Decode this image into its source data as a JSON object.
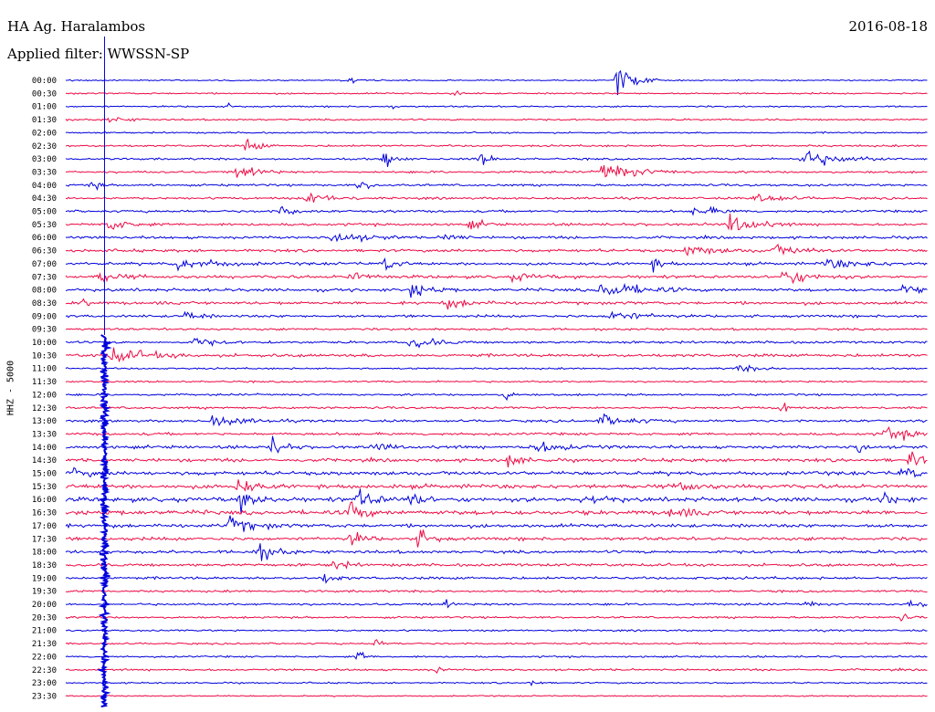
{
  "header": {
    "station": "HA Ag. Haralambos",
    "date": "2016-08-18",
    "filter": "Applied filter: WWSSN-SP"
  },
  "channel_label": "HHZ - 5000",
  "colors": {
    "trace_a": "#0000dd",
    "trace_b": "#ee0a44",
    "text": "#000000"
  },
  "chart_data": {
    "type": "line",
    "description_type": "helicorder",
    "row_labels": [
      "00:00",
      "00:30",
      "01:00",
      "01:30",
      "02:00",
      "02:30",
      "03:00",
      "03:30",
      "04:00",
      "04:30",
      "05:00",
      "05:30",
      "06:00",
      "06:30",
      "07:00",
      "07:30",
      "08:00",
      "08:30",
      "09:00",
      "09:30",
      "10:00",
      "10:30",
      "11:00",
      "11:30",
      "12:00",
      "12:30",
      "13:00",
      "13:30",
      "14:00",
      "14:30",
      "15:00",
      "15:30",
      "16:00",
      "16:30",
      "17:00",
      "17:30",
      "18:00",
      "18:30",
      "19:00",
      "19:30",
      "20:00",
      "20:30",
      "21:00",
      "21:30",
      "22:00",
      "22:30",
      "23:00",
      "23:30"
    ],
    "row_noise": [
      0.6,
      0.7,
      0.7,
      0.8,
      0.7,
      0.9,
      0.9,
      1.0,
      1.0,
      1.0,
      1.1,
      1.2,
      1.2,
      1.3,
      1.3,
      1.4,
      1.4,
      1.4,
      1.2,
      1.0,
      1.1,
      1.4,
      0.8,
      0.8,
      0.9,
      1.0,
      1.1,
      1.2,
      1.4,
      1.5,
      1.7,
      1.9,
      2.0,
      2.0,
      1.6,
      1.5,
      1.4,
      1.3,
      1.2,
      1.0,
      1.0,
      0.9,
      0.8,
      0.8,
      0.8,
      0.9,
      0.7,
      0.6
    ],
    "events": [
      {
        "row": 0,
        "t": 0.64,
        "amp": 14,
        "dur": 0.03
      },
      {
        "row": 0,
        "t": 0.33,
        "amp": 4,
        "dur": 0.01
      },
      {
        "row": 1,
        "t": 0.45,
        "amp": 4,
        "dur": 0.01
      },
      {
        "row": 2,
        "t": 0.19,
        "amp": 3,
        "dur": 0.01
      },
      {
        "row": 2,
        "t": 0.38,
        "amp": 3,
        "dur": 0.01
      },
      {
        "row": 3,
        "t": 0.05,
        "amp": 3,
        "dur": 0.03
      },
      {
        "row": 5,
        "t": 0.21,
        "amp": 9,
        "dur": 0.02
      },
      {
        "row": 6,
        "t": 0.37,
        "amp": 9,
        "dur": 0.02
      },
      {
        "row": 6,
        "t": 0.48,
        "amp": 7,
        "dur": 0.02
      },
      {
        "row": 6,
        "t": 0.85,
        "amp": 10,
        "dur": 0.06
      },
      {
        "row": 7,
        "t": 0.2,
        "amp": 8,
        "dur": 0.03
      },
      {
        "row": 7,
        "t": 0.62,
        "amp": 9,
        "dur": 0.06
      },
      {
        "row": 8,
        "t": 0.03,
        "amp": 7,
        "dur": 0.01
      },
      {
        "row": 8,
        "t": 0.34,
        "amp": 5,
        "dur": 0.02
      },
      {
        "row": 9,
        "t": 0.28,
        "amp": 6,
        "dur": 0.04
      },
      {
        "row": 9,
        "t": 0.8,
        "amp": 6,
        "dur": 0.04
      },
      {
        "row": 10,
        "t": 0.25,
        "amp": 7,
        "dur": 0.02
      },
      {
        "row": 10,
        "t": 0.73,
        "amp": 5,
        "dur": 0.04
      },
      {
        "row": 11,
        "t": 0.05,
        "amp": 7,
        "dur": 0.03
      },
      {
        "row": 11,
        "t": 0.47,
        "amp": 5,
        "dur": 0.02
      },
      {
        "row": 11,
        "t": 0.77,
        "amp": 11,
        "dur": 0.04
      },
      {
        "row": 12,
        "t": 0.31,
        "amp": 6,
        "dur": 0.05
      },
      {
        "row": 12,
        "t": 0.44,
        "amp": 6,
        "dur": 0.02
      },
      {
        "row": 13,
        "t": 0.72,
        "amp": 5,
        "dur": 0.05
      },
      {
        "row": 13,
        "t": 0.82,
        "amp": 5,
        "dur": 0.05
      },
      {
        "row": 14,
        "t": 0.13,
        "amp": 6,
        "dur": 0.06
      },
      {
        "row": 14,
        "t": 0.37,
        "amp": 7,
        "dur": 0.02
      },
      {
        "row": 14,
        "t": 0.68,
        "amp": 6,
        "dur": 0.02
      },
      {
        "row": 14,
        "t": 0.88,
        "amp": 5,
        "dur": 0.06
      },
      {
        "row": 15,
        "t": 0.04,
        "amp": 6,
        "dur": 0.03
      },
      {
        "row": 15,
        "t": 0.33,
        "amp": 5,
        "dur": 0.03
      },
      {
        "row": 15,
        "t": 0.52,
        "amp": 5,
        "dur": 0.03
      },
      {
        "row": 15,
        "t": 0.83,
        "amp": 7,
        "dur": 0.05
      },
      {
        "row": 16,
        "t": 0.4,
        "amp": 8,
        "dur": 0.03
      },
      {
        "row": 16,
        "t": 0.62,
        "amp": 9,
        "dur": 0.06
      },
      {
        "row": 16,
        "t": 0.97,
        "amp": 6,
        "dur": 0.02
      },
      {
        "row": 17,
        "t": 0.02,
        "amp": 7,
        "dur": 0.01
      },
      {
        "row": 17,
        "t": 0.44,
        "amp": 5,
        "dur": 0.04
      },
      {
        "row": 18,
        "t": 0.14,
        "amp": 6,
        "dur": 0.02
      },
      {
        "row": 18,
        "t": 0.63,
        "amp": 6,
        "dur": 0.05
      },
      {
        "row": 20,
        "t": 0.4,
        "amp": 6,
        "dur": 0.04
      },
      {
        "row": 20,
        "t": 0.15,
        "amp": 5,
        "dur": 0.03
      },
      {
        "row": 21,
        "t": 0.05,
        "amp": 8,
        "dur": 0.06
      },
      {
        "row": 22,
        "t": 0.78,
        "amp": 4,
        "dur": 0.03
      },
      {
        "row": 24,
        "t": 0.51,
        "amp": 7,
        "dur": 0.01
      },
      {
        "row": 25,
        "t": 0.83,
        "amp": 11,
        "dur": 0.01
      },
      {
        "row": 26,
        "t": 0.17,
        "amp": 6,
        "dur": 0.05
      },
      {
        "row": 26,
        "t": 0.62,
        "amp": 6,
        "dur": 0.05
      },
      {
        "row": 27,
        "t": 0.95,
        "amp": 6,
        "dur": 0.06
      },
      {
        "row": 28,
        "t": 0.24,
        "amp": 10,
        "dur": 0.02
      },
      {
        "row": 28,
        "t": 0.36,
        "amp": 6,
        "dur": 0.02
      },
      {
        "row": 28,
        "t": 0.54,
        "amp": 6,
        "dur": 0.06
      },
      {
        "row": 28,
        "t": 0.92,
        "amp": 8,
        "dur": 0.01
      },
      {
        "row": 29,
        "t": 0.51,
        "amp": 9,
        "dur": 0.02
      },
      {
        "row": 29,
        "t": 0.98,
        "amp": 9,
        "dur": 0.02
      },
      {
        "row": 30,
        "t": 0.01,
        "amp": 6,
        "dur": 0.02
      },
      {
        "row": 30,
        "t": 0.97,
        "amp": 6,
        "dur": 0.03
      },
      {
        "row": 31,
        "t": 0.2,
        "amp": 10,
        "dur": 0.02
      },
      {
        "row": 31,
        "t": 0.71,
        "amp": 7,
        "dur": 0.03
      },
      {
        "row": 32,
        "t": 0.2,
        "amp": 10,
        "dur": 0.03
      },
      {
        "row": 32,
        "t": 0.34,
        "amp": 9,
        "dur": 0.03
      },
      {
        "row": 32,
        "t": 0.4,
        "amp": 8,
        "dur": 0.02
      },
      {
        "row": 32,
        "t": 0.6,
        "amp": 7,
        "dur": 0.03
      },
      {
        "row": 32,
        "t": 0.95,
        "amp": 7,
        "dur": 0.02
      },
      {
        "row": 33,
        "t": 0.33,
        "amp": 12,
        "dur": 0.02
      },
      {
        "row": 33,
        "t": 0.7,
        "amp": 6,
        "dur": 0.03
      },
      {
        "row": 34,
        "t": 0.19,
        "amp": 8,
        "dur": 0.04
      },
      {
        "row": 35,
        "t": 0.33,
        "amp": 8,
        "dur": 0.02
      },
      {
        "row": 35,
        "t": 0.41,
        "amp": 10,
        "dur": 0.02
      },
      {
        "row": 36,
        "t": 0.22,
        "amp": 10,
        "dur": 0.03
      },
      {
        "row": 37,
        "t": 0.31,
        "amp": 6,
        "dur": 0.02
      },
      {
        "row": 38,
        "t": 0.3,
        "amp": 5,
        "dur": 0.02
      },
      {
        "row": 40,
        "t": 0.44,
        "amp": 5,
        "dur": 0.01
      },
      {
        "row": 40,
        "t": 0.98,
        "amp": 7,
        "dur": 0.02
      },
      {
        "row": 40,
        "t": 0.86,
        "amp": 4,
        "dur": 0.01
      },
      {
        "row": 41,
        "t": 0.97,
        "amp": 4,
        "dur": 0.01
      },
      {
        "row": 43,
        "t": 0.36,
        "amp": 5,
        "dur": 0.01
      },
      {
        "row": 44,
        "t": 0.34,
        "amp": 7,
        "dur": 0.01
      },
      {
        "row": 45,
        "t": 0.43,
        "amp": 4,
        "dur": 0.01
      },
      {
        "row": 46,
        "t": 0.54,
        "amp": 5,
        "dur": 0.01
      }
    ],
    "big_event": {
      "t": 0.045,
      "start_row": 20,
      "end_row": 47
    }
  }
}
